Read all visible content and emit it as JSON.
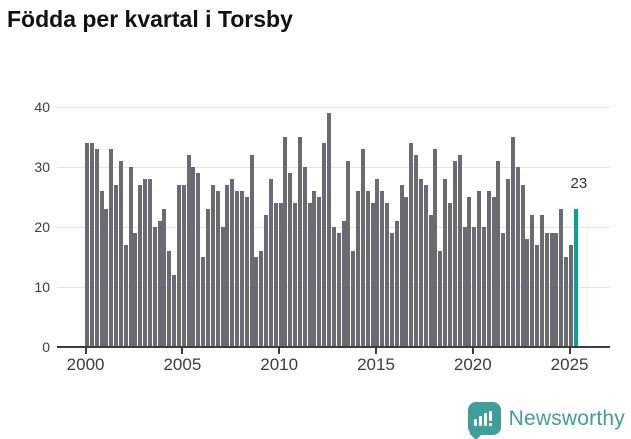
{
  "header": {
    "title": "Födda per kvartal i Torsby"
  },
  "chart_data": {
    "type": "bar",
    "title": "Födda per kvartal i Torsby",
    "x_unit": "quarter",
    "start_quarter": "2000-Q1",
    "end_quarter": "2025-Q2",
    "values": [
      34,
      34,
      33,
      26,
      23,
      33,
      27,
      31,
      17,
      30,
      19,
      27,
      28,
      28,
      20,
      21,
      23,
      16,
      12,
      27,
      27,
      32,
      30,
      29,
      15,
      23,
      27,
      26,
      20,
      27,
      28,
      26,
      26,
      25,
      32,
      15,
      16,
      22,
      28,
      24,
      24,
      35,
      29,
      24,
      35,
      30,
      24,
      26,
      25,
      34,
      39,
      20,
      19,
      21,
      31,
      16,
      26,
      33,
      26,
      24,
      28,
      26,
      24,
      19,
      21,
      27,
      25,
      34,
      32,
      28,
      27,
      22,
      33,
      16,
      28,
      24,
      31,
      32,
      20,
      25,
      20,
      26,
      20,
      26,
      25,
      31,
      19,
      28,
      35,
      30,
      27,
      18,
      22,
      17,
      22,
      19,
      19,
      19,
      23,
      15,
      17,
      23
    ],
    "y_ticks": [
      0,
      10,
      20,
      30,
      40
    ],
    "ylim": [
      0,
      40
    ],
    "x_tick_years": [
      "2000",
      "2005",
      "2010",
      "2015",
      "2020",
      "2025"
    ],
    "x_tick_quarter_indices": [
      0,
      20,
      40,
      60,
      80,
      100
    ],
    "grid": "horizontal",
    "legend": "none",
    "bar_color": "#6a6a73",
    "highlight": {
      "index": 101,
      "quarter": "2025-Q2",
      "value": 23,
      "label": "23",
      "color": "#00a39b"
    },
    "axis_color": "#3d3d3d",
    "grid_color": "#e4e4e4",
    "annotation_color": "#333333"
  },
  "footer": {
    "logo_text": "Newsworthy",
    "logo_color": "#3f9e98"
  }
}
